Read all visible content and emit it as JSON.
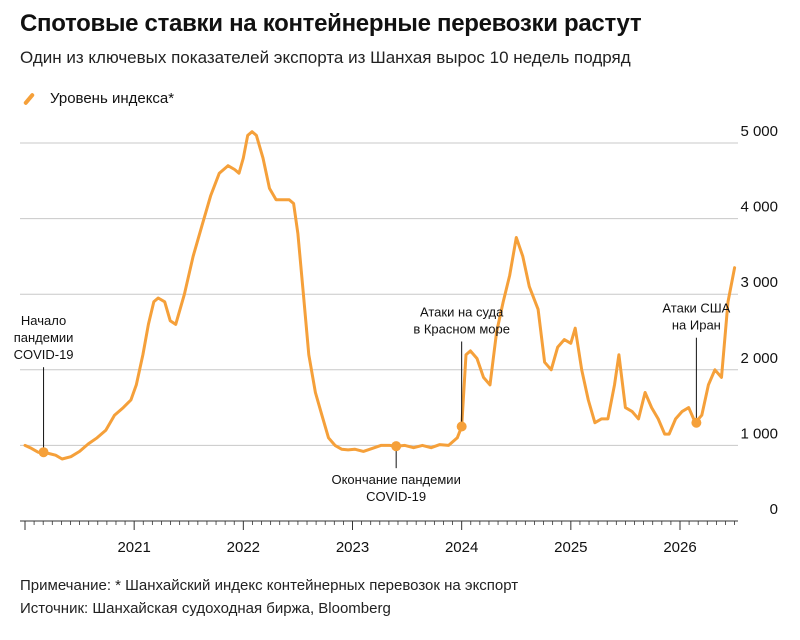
{
  "title": "Спотовые ставки на контейнерные перевозки растут",
  "subtitle": "Один из ключевых показателей экспорта из Шанхая вырос 10 недель подряд",
  "legend_label": "Уровень индекса*",
  "note": "Примечание: * Шанхайский индекс контейнерных перевозок на экспорт",
  "source": "Источник: Шанхайская судоходная биржа, Bloomberg",
  "colors": {
    "series": "#f5a03a",
    "grid": "#c8c8c8",
    "text": "#111111",
    "annotation": "#111111"
  },
  "chart_data": {
    "type": "line",
    "series": [
      {
        "name": "Уровень индекса*",
        "x": [
          2020.0,
          2020.06,
          2020.12,
          2020.2,
          2020.28,
          2020.34,
          2020.42,
          2020.5,
          2020.58,
          2020.66,
          2020.74,
          2020.82,
          2020.9,
          2020.97,
          2021.02,
          2021.08,
          2021.13,
          2021.18,
          2021.22,
          2021.28,
          2021.33,
          2021.38,
          2021.46,
          2021.54,
          2021.62,
          2021.7,
          2021.78,
          2021.86,
          2021.92,
          2021.96,
          2022.0,
          2022.04,
          2022.08,
          2022.12,
          2022.18,
          2022.24,
          2022.3,
          2022.36,
          2022.42,
          2022.46,
          2022.5,
          2022.55,
          2022.6,
          2022.66,
          2022.72,
          2022.78,
          2022.84,
          2022.9,
          2022.96,
          2023.02,
          2023.1,
          2023.18,
          2023.26,
          2023.34,
          2023.4,
          2023.48,
          2023.56,
          2023.64,
          2023.72,
          2023.8,
          2023.88,
          2023.96,
          2024.0,
          2024.04,
          2024.08,
          2024.14,
          2024.2,
          2024.26,
          2024.32,
          2024.38,
          2024.44,
          2024.5,
          2024.56,
          2024.62,
          2024.7,
          2024.76,
          2024.82,
          2024.88,
          2024.94,
          2025.0,
          2025.04,
          2025.1,
          2025.16,
          2025.22,
          2025.28,
          2025.34,
          2025.4,
          2025.44,
          2025.5,
          2025.56,
          2025.62,
          2025.68,
          2025.74,
          2025.8,
          2025.86,
          2025.9,
          2025.96,
          2026.02,
          2026.08,
          2026.14,
          2026.2,
          2026.26,
          2026.32,
          2026.38,
          2026.44,
          2026.5
        ],
        "y": [
          1000,
          960,
          910,
          900,
          870,
          820,
          850,
          920,
          1020,
          1100,
          1200,
          1400,
          1500,
          1600,
          1800,
          2200,
          2600,
          2900,
          2950,
          2900,
          2650,
          2600,
          3000,
          3500,
          3900,
          4300,
          4600,
          4700,
          4650,
          4600,
          4800,
          5100,
          5150,
          5100,
          4800,
          4400,
          4250,
          4250,
          4250,
          4200,
          3800,
          3000,
          2200,
          1700,
          1400,
          1100,
          1000,
          950,
          940,
          950,
          920,
          960,
          1000,
          1000,
          990,
          1000,
          970,
          1000,
          970,
          1010,
          1000,
          1100,
          1250,
          2200,
          2250,
          2150,
          1900,
          1800,
          2500,
          2900,
          3250,
          3750,
          3500,
          3100,
          2800,
          2100,
          2000,
          2300,
          2400,
          2350,
          2550,
          2000,
          1600,
          1300,
          1350,
          1350,
          1800,
          2200,
          1500,
          1450,
          1350,
          1700,
          1500,
          1350,
          1150,
          1150,
          1350,
          1450,
          1500,
          1300,
          1400,
          1800,
          2000,
          1900,
          2900,
          3350
        ]
      }
    ],
    "y_ticks": [
      0,
      1000,
      2000,
      3000,
      4000,
      5000
    ],
    "y_tick_labels": [
      "0",
      "1 000",
      "2 000",
      "3 000",
      "4 000",
      "5 000"
    ],
    "x_ticks": [
      2021,
      2022,
      2023,
      2024,
      2025,
      2026
    ],
    "x_tick_labels": [
      "2021",
      "2022",
      "2023",
      "2024",
      "2025",
      "2026"
    ],
    "xlim": [
      2020.0,
      2027.0
    ],
    "ylim": [
      0,
      5000
    ],
    "y_axis_side": "right",
    "grid": true,
    "legend_placement": "top-left",
    "annotations": [
      {
        "x": 2020.17,
        "y": 910,
        "lines": [
          "Начало",
          "пандемии",
          "COVID-19"
        ],
        "position": "above"
      },
      {
        "x": 2023.4,
        "y": 990,
        "lines": [
          "Окончание пандемии",
          "COVID-19"
        ],
        "position": "below"
      },
      {
        "x": 2024.0,
        "y": 1250,
        "lines": [
          "Атаки на суда",
          "в Красном море"
        ],
        "position": "above"
      },
      {
        "x": 2026.15,
        "y": 1300,
        "lines": [
          "Атаки США",
          "на Иран"
        ],
        "position": "above"
      }
    ]
  }
}
